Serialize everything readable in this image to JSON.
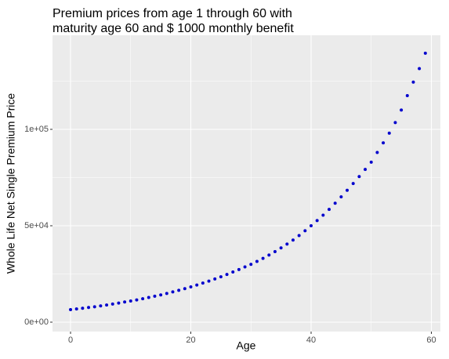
{
  "chart_data": {
    "type": "scatter",
    "title": [
      "Premium prices from age 1 through 60 with",
      "maturity age 60 and $ 1000 monthly benefit"
    ],
    "xlabel": "Age",
    "ylabel": "Whole Life Net Single Premium Price",
    "x": [
      0,
      1,
      2,
      3,
      4,
      5,
      6,
      7,
      8,
      9,
      10,
      11,
      12,
      13,
      14,
      15,
      16,
      17,
      18,
      19,
      20,
      21,
      22,
      23,
      24,
      25,
      26,
      27,
      28,
      29,
      30,
      31,
      32,
      33,
      34,
      35,
      36,
      37,
      38,
      39,
      40,
      41,
      42,
      43,
      44,
      45,
      46,
      47,
      48,
      49,
      50,
      51,
      52,
      53,
      54,
      55,
      56,
      57,
      58,
      59
    ],
    "values": [
      6500,
      6850,
      7200,
      7600,
      8000,
      8450,
      8900,
      9400,
      9900,
      10450,
      11000,
      11550,
      12150,
      12800,
      13450,
      14150,
      14900,
      15700,
      16500,
      17400,
      18300,
      19250,
      20250,
      21300,
      22400,
      23550,
      24750,
      26000,
      27300,
      28650,
      30000,
      31500,
      33100,
      34800,
      36600,
      38500,
      40500,
      42600,
      44900,
      47400,
      50000,
      52700,
      55500,
      58500,
      61700,
      65000,
      68400,
      71900,
      75500,
      79200,
      83000,
      88000,
      93000,
      98000,
      103500,
      110000,
      117500,
      124500,
      131500,
      139500
    ],
    "color": "#0000cd",
    "xlim": [
      -3,
      61.5
    ],
    "ylim": [
      -4878,
      148780
    ],
    "xticks": [
      0,
      20,
      40,
      60
    ],
    "yticks": [
      {
        "value": 0,
        "label": "0e+00"
      },
      {
        "value": 50000,
        "label": "5e+04"
      },
      {
        "value": 100000,
        "label": "1e+05"
      }
    ],
    "minor_xticks": [
      10,
      30,
      50
    ],
    "minor_yticks": [
      25000,
      75000,
      125000
    ],
    "grid": true
  }
}
